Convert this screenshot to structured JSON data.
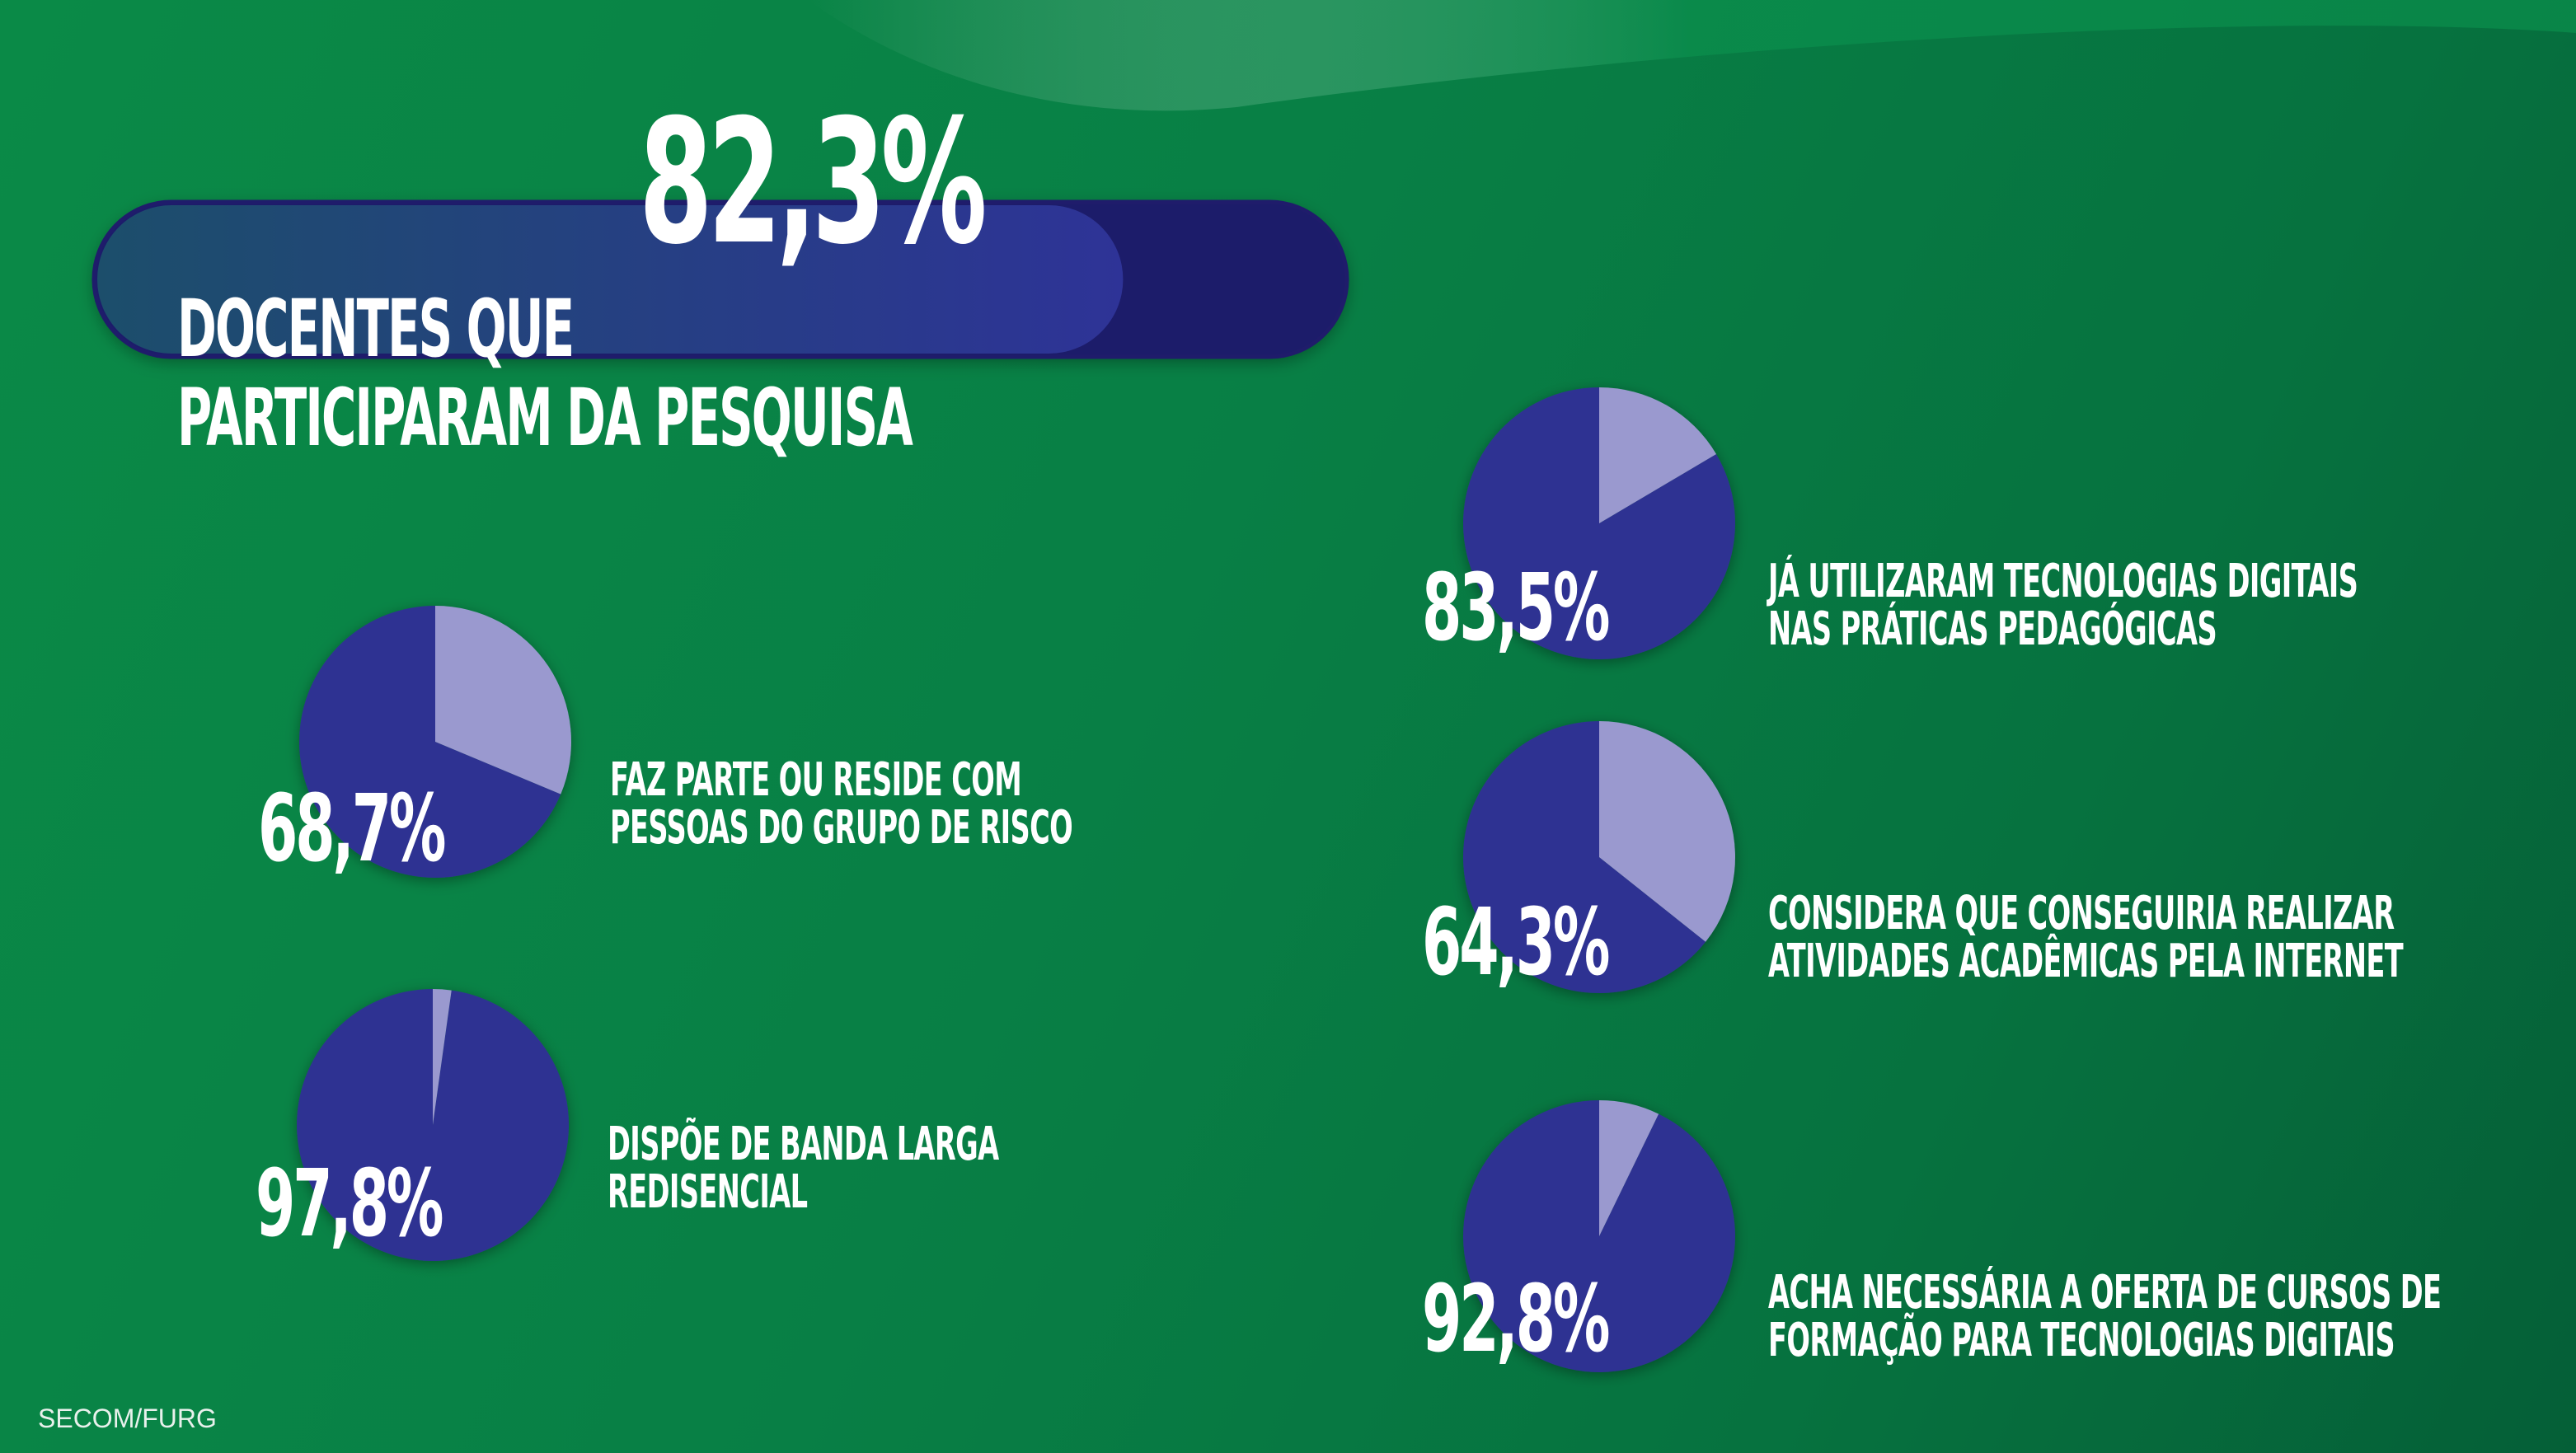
{
  "colors": {
    "background": "#087f45",
    "pie_major": "#2e3192",
    "pie_minor": "#9a99cf",
    "bar_track": "#1f1c6b",
    "bar_fill_start": "#1c4e6b",
    "bar_fill_end": "#2e3397",
    "text": "#ffffff"
  },
  "headline": {
    "value_label": "82,3%",
    "value": 82.3,
    "line1": "DOCENTES QUE",
    "line2": "PARTICIPARAM DA PESQUISA"
  },
  "chart_data": [
    {
      "type": "pie",
      "value_label": "68,7%",
      "values": [
        68.7,
        31.3
      ],
      "description": [
        "FAZ PARTE OU RESIDE COM",
        "PESSOAS DO GRUPO DE RISCO"
      ]
    },
    {
      "type": "pie",
      "value_label": "97,8%",
      "values": [
        97.8,
        2.2
      ],
      "description": [
        "DISPÕE DE BANDA LARGA",
        "REDISENCIAL"
      ]
    },
    {
      "type": "pie",
      "value_label": "83,5%",
      "values": [
        83.5,
        16.5
      ],
      "description": [
        "JÁ UTILIZARAM TECNOLOGIAS DIGITAIS",
        "NAS PRÁTICAS PEDAGÓGICAS"
      ]
    },
    {
      "type": "pie",
      "value_label": "64,3%",
      "values": [
        64.3,
        35.7
      ],
      "description": [
        "CONSIDERA QUE CONSEGUIRIA REALIZAR",
        "ATIVIDADES ACADÊMICAS PELA INTERNET"
      ]
    },
    {
      "type": "pie",
      "value_label": "92,8%",
      "values": [
        92.8,
        7.2
      ],
      "description": [
        "ACHA NECESSÁRIA A OFERTA DE CURSOS DE",
        "FORMAÇÃO PARA TECNOLOGIAS DIGITAIS"
      ]
    }
  ],
  "credit": "SECOM/FURG"
}
